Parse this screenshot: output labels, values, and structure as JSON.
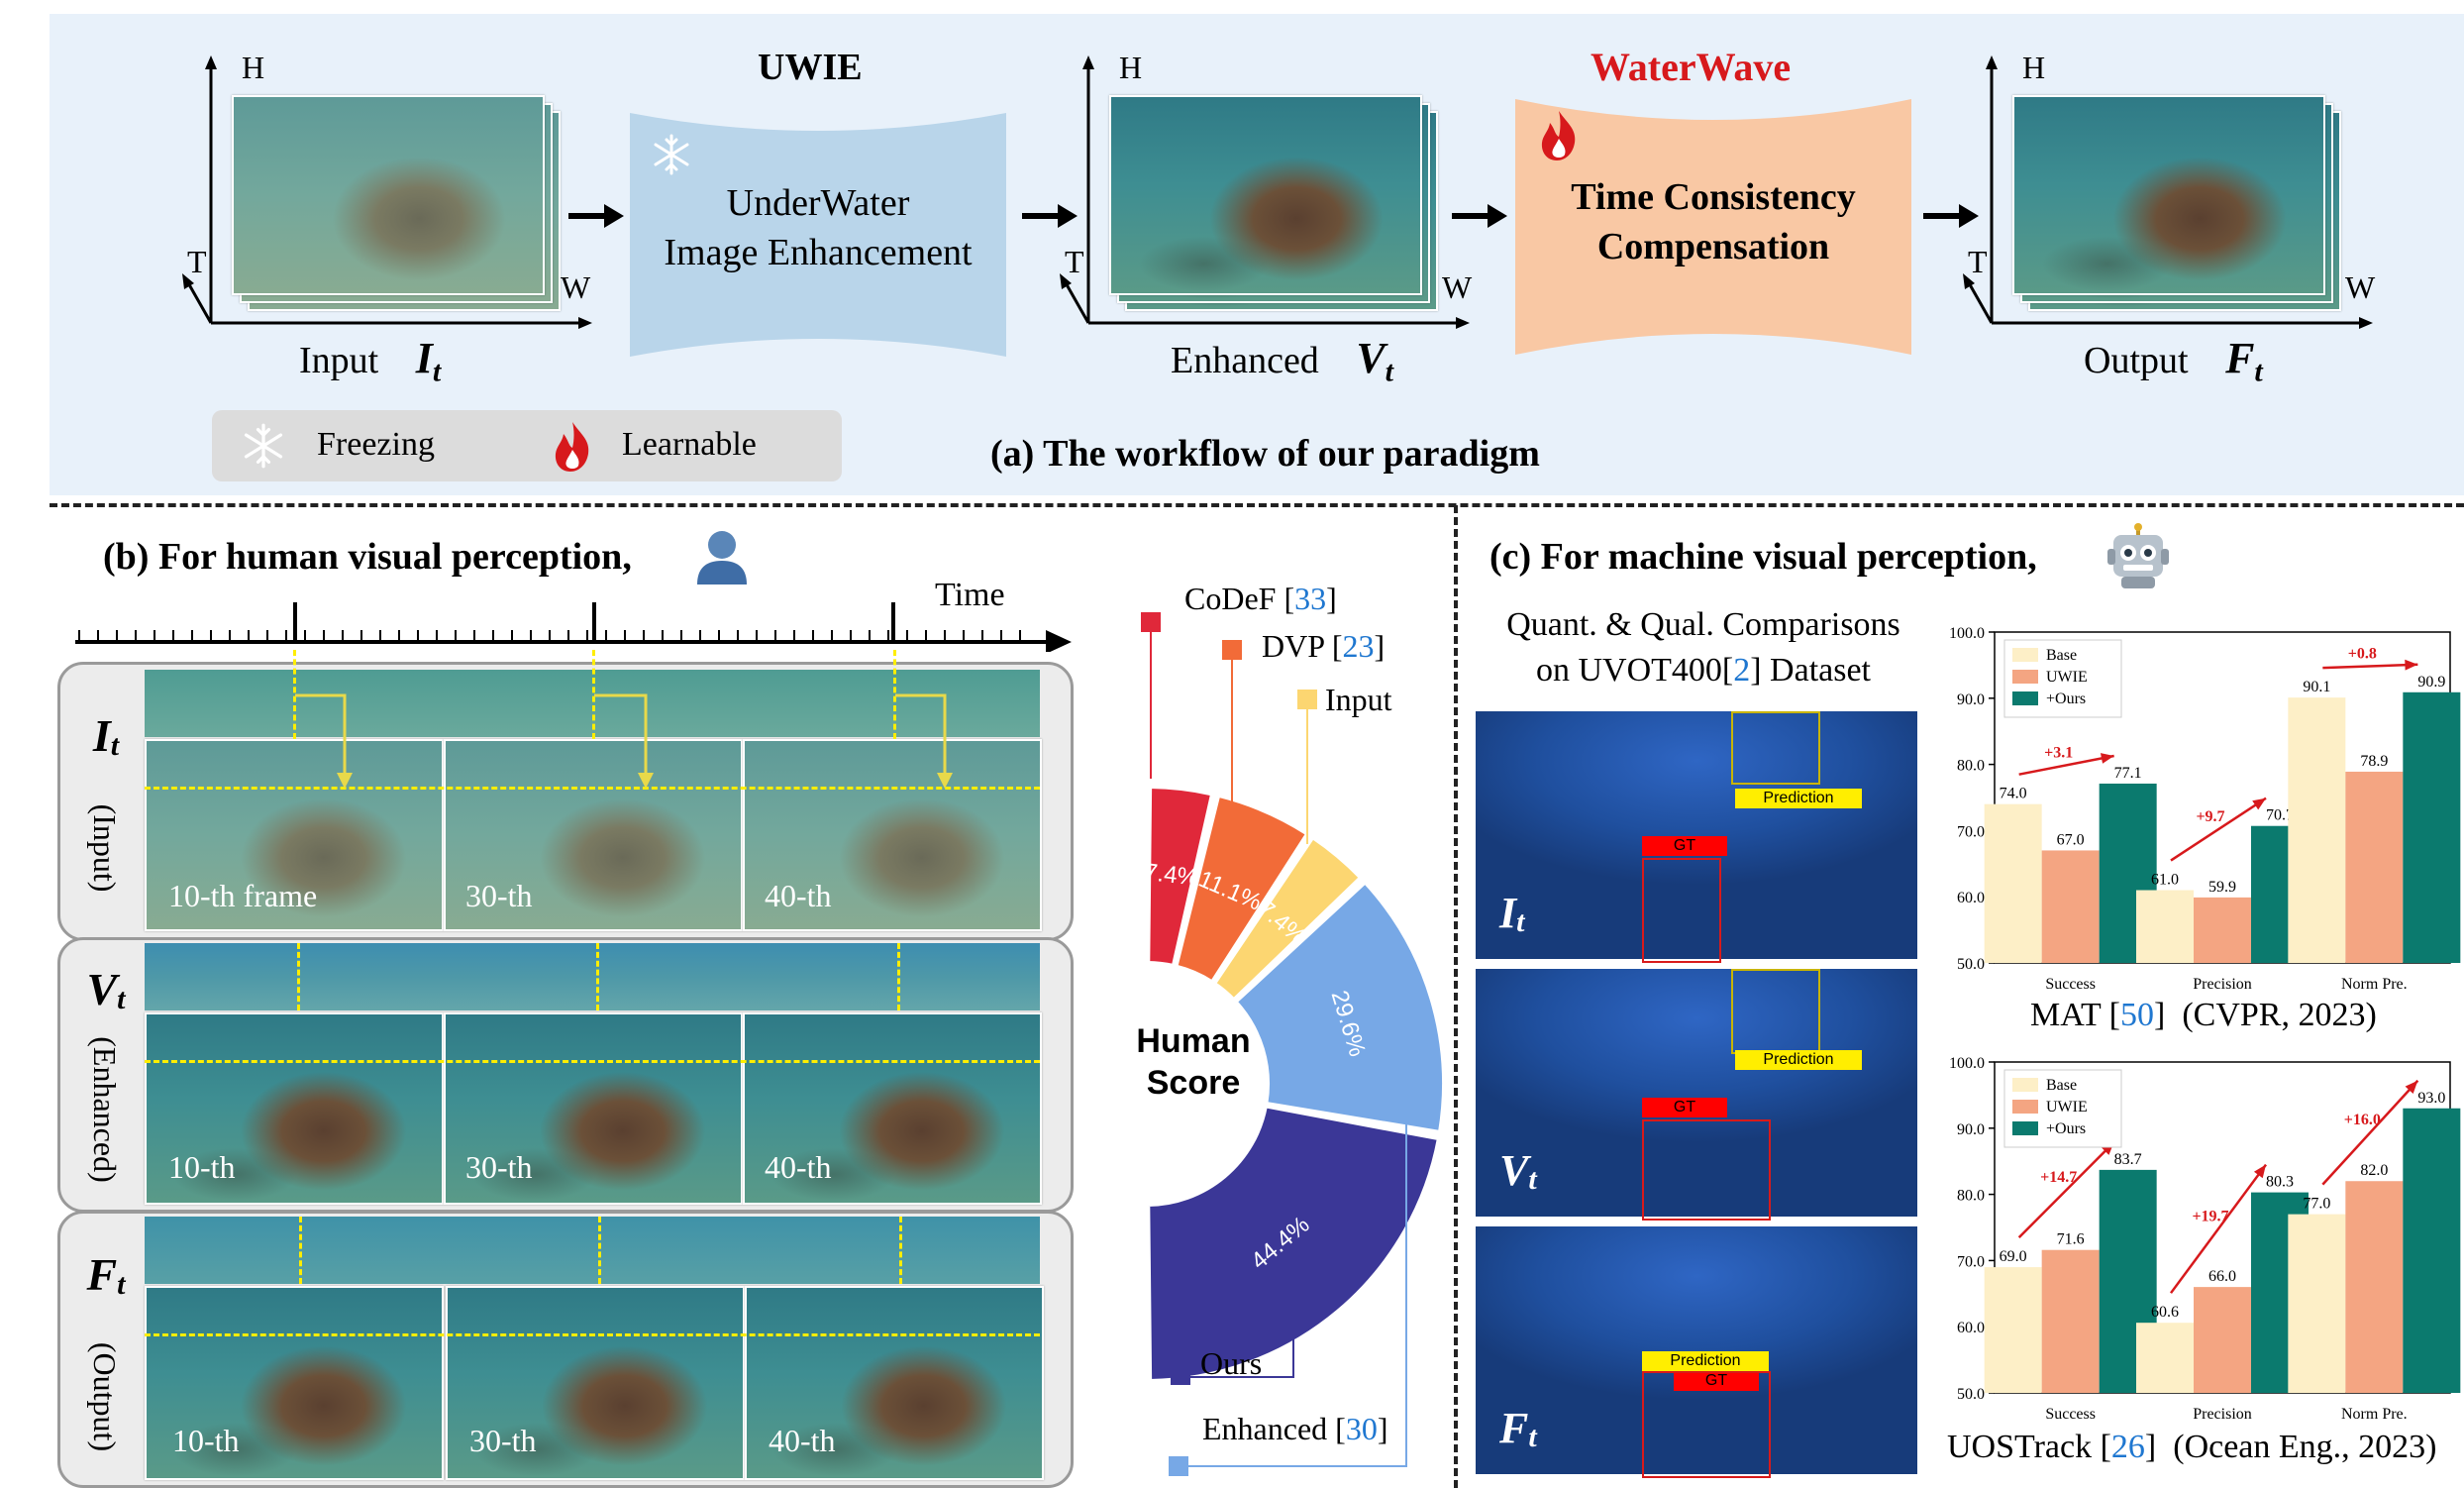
{
  "workflow": {
    "uwie_title": "UWIE",
    "uwie_line1": "UnderWater",
    "uwie_line2": "Image Enhancement",
    "waterwave_title": "WaterWave",
    "waterwave_line1": "Time Consistency",
    "waterwave_line2": "Compensation",
    "axis_h": "H",
    "axis_t": "T",
    "axis_w": "W",
    "input_label": "Input",
    "enhanced_label": "Enhanced",
    "output_label": "Output",
    "input_symbol": "I",
    "enhanced_symbol": "V",
    "output_symbol": "F",
    "subscript": "t",
    "legend_freezing": "Freezing",
    "legend_learnable": "Learnable",
    "caption": "(a) The workflow of our paradigm",
    "colors": {
      "uwie": "#b9d5ea",
      "waterwave": "#f9c8a4",
      "waterwave_title": "#d7191c",
      "panel": "#e8f1fa"
    },
    "icons": [
      "snowflake-icon",
      "flame-icon",
      "arrow-right-icon"
    ]
  },
  "human": {
    "heading": "(b) For human visual perception,",
    "time_label": "Time",
    "rows": [
      {
        "symbol": "I",
        "sub": "t",
        "desc": "(Input)"
      },
      {
        "symbol": "V",
        "sub": "t",
        "desc": "(Enhanced)"
      },
      {
        "symbol": "F",
        "sub": "t",
        "desc": "(Output)"
      }
    ],
    "frame_labels_row1": [
      "10-th frame",
      "30-th",
      "40-th"
    ],
    "frame_labels": [
      "10-th",
      "30-th",
      "40-th"
    ],
    "icons": [
      "person-icon"
    ]
  },
  "chart_data": [
    {
      "type": "pie",
      "title": "Human Score",
      "slices": [
        {
          "name": "CoDeF",
          "ref": "33",
          "value": 7.4,
          "label": "7.4%",
          "color": "#e0283a"
        },
        {
          "name": "DVP",
          "ref": "23",
          "value": 11.1,
          "label": "11.1%",
          "color": "#f26b38"
        },
        {
          "name": "Input",
          "ref": "",
          "value": 7.4,
          "label": "7.4%",
          "color": "#fcd671"
        },
        {
          "name": "Enhanced",
          "ref": "30",
          "value": 29.6,
          "label": "29.6%",
          "color": "#77a8e6"
        },
        {
          "name": "Ours",
          "ref": "",
          "value": 44.4,
          "label": "44.4%",
          "color": "#3b3797"
        }
      ]
    },
    {
      "type": "bar",
      "title": "MAT [50] (CVPR, 2023)",
      "categories": [
        "Success",
        "Precision",
        "Norm Pre."
      ],
      "series": [
        {
          "name": "Base",
          "values": [
            74.0,
            61.0,
            90.1
          ],
          "color": "#fdefc7"
        },
        {
          "name": "UWIE",
          "values": [
            67.0,
            59.9,
            78.9
          ],
          "color": "#f4a582"
        },
        {
          "name": "+Ours",
          "values": [
            77.1,
            70.7,
            90.9
          ],
          "color": "#0b7a6e"
        }
      ],
      "gains": [
        "+3.1",
        "+9.7",
        "+0.8"
      ],
      "ylim": [
        50.0,
        100.0
      ],
      "yticks": [
        "50.0",
        "60.0",
        "70.0",
        "80.0",
        "90.0",
        "100.0"
      ]
    },
    {
      "type": "bar",
      "title": "UOSTrack [26] (Ocean Eng., 2023)",
      "categories": [
        "Success",
        "Precision",
        "Norm Pre."
      ],
      "series": [
        {
          "name": "Base",
          "values": [
            69.0,
            60.6,
            77.0
          ],
          "color": "#fdefc7"
        },
        {
          "name": "UWIE",
          "values": [
            71.6,
            66.0,
            82.0
          ],
          "color": "#f4a582"
        },
        {
          "name": "+Ours",
          "values": [
            83.7,
            80.3,
            93.0
          ],
          "color": "#0b7a6e"
        }
      ],
      "gains": [
        "+14.7",
        "+19.7",
        "+16.0"
      ],
      "ylim": [
        50.0,
        100.0
      ],
      "yticks": [
        "50.0",
        "60.0",
        "70.0",
        "80.0",
        "90.0",
        "100.0"
      ]
    }
  ],
  "pie_legend": {
    "codef_name": "CoDeF",
    "codef_ref": "33",
    "dvp_name": "DVP",
    "dvp_ref": "23",
    "input_name": "Input",
    "ours_name": "Ours",
    "enhanced_name": "Enhanced",
    "enhanced_ref": "30",
    "center_line1": "Human",
    "center_line2": "Score"
  },
  "machine": {
    "heading": "(c) For machine visual perception,",
    "sub_line1": "Quant. & Qual. Comparisons",
    "sub_line2_pre": "on UVOT400[",
    "sub_line2_ref": "2",
    "sub_line2_post": "] Dataset",
    "prediction": "Prediction",
    "gt": "GT",
    "mat_name": "MAT",
    "mat_ref": "50",
    "mat_venue": "(CVPR, 2023)",
    "uos_name": "UOSTrack",
    "uos_ref": "26",
    "uos_venue": "(Ocean Eng., 2023)",
    "icons": [
      "robot-icon"
    ]
  }
}
